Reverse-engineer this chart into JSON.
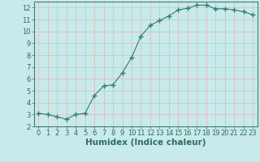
{
  "x": [
    0,
    1,
    2,
    3,
    4,
    5,
    6,
    7,
    8,
    9,
    10,
    11,
    12,
    13,
    14,
    15,
    16,
    17,
    18,
    19,
    20,
    21,
    22,
    23
  ],
  "y": [
    3.1,
    3.0,
    2.8,
    2.6,
    3.0,
    3.1,
    4.6,
    5.4,
    5.5,
    6.5,
    7.8,
    9.6,
    10.5,
    10.9,
    11.3,
    11.8,
    11.95,
    12.2,
    12.2,
    11.9,
    11.9,
    11.8,
    11.65,
    11.4
  ],
  "line_color": "#2e7d6e",
  "marker": "+",
  "marker_size": 4,
  "bg_color": "#c8eaea",
  "grid_color": "#e0b8b8",
  "xlabel": "Humidex (Indice chaleur)",
  "xlim": [
    -0.5,
    23.5
  ],
  "ylim": [
    2,
    12.5
  ],
  "yticks": [
    2,
    3,
    4,
    5,
    6,
    7,
    8,
    9,
    10,
    11,
    12
  ],
  "xticks": [
    0,
    1,
    2,
    3,
    4,
    5,
    6,
    7,
    8,
    9,
    10,
    11,
    12,
    13,
    14,
    15,
    16,
    17,
    18,
    19,
    20,
    21,
    22,
    23
  ],
  "tick_label_fontsize": 6.0,
  "xlabel_fontsize": 7.5,
  "tick_color": "#2e6b60",
  "spine_color": "#4a7a70"
}
